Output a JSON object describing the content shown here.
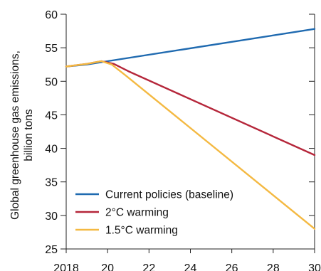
{
  "chart_data": {
    "type": "line",
    "ylabel_lines": [
      "Global greenhouse gas emissions,",
      "billion tons"
    ],
    "xlabel": "",
    "title": "",
    "xlim": [
      2018,
      2030
    ],
    "ylim": [
      25,
      60
    ],
    "x_ticks": [
      2018,
      2020,
      2022,
      2024,
      2026,
      2028,
      2030
    ],
    "x_tick_labels": [
      "2018",
      "20",
      "22",
      "24",
      "26",
      "28",
      "30"
    ],
    "y_ticks": [
      25,
      30,
      35,
      40,
      45,
      50,
      55,
      60
    ],
    "y_tick_labels": [
      "25",
      "30",
      "35",
      "40",
      "45",
      "50",
      "55",
      "60"
    ],
    "grid": false,
    "legend_position": "bottom-left",
    "series": [
      {
        "name": "Current policies (baseline)",
        "color": "#1f6ab0",
        "points": [
          [
            2018,
            52.2
          ],
          [
            2019,
            52.5
          ],
          [
            2020,
            53.0
          ],
          [
            2030,
            57.8
          ]
        ]
      },
      {
        "name": "2°C warming",
        "color": "#b5263a",
        "points": [
          [
            2018,
            52.2
          ],
          [
            2019,
            52.6
          ],
          [
            2019.7,
            53.0
          ],
          [
            2020.3,
            52.6
          ],
          [
            2021,
            51.5
          ],
          [
            2030,
            39.0
          ]
        ]
      },
      {
        "name": "1.5°C warming",
        "color": "#f4b942",
        "points": [
          [
            2018,
            52.2
          ],
          [
            2019,
            52.6
          ],
          [
            2019.7,
            53.0
          ],
          [
            2020.2,
            52.5
          ],
          [
            2020.9,
            50.8
          ],
          [
            2030,
            28.0
          ]
        ]
      }
    ]
  }
}
